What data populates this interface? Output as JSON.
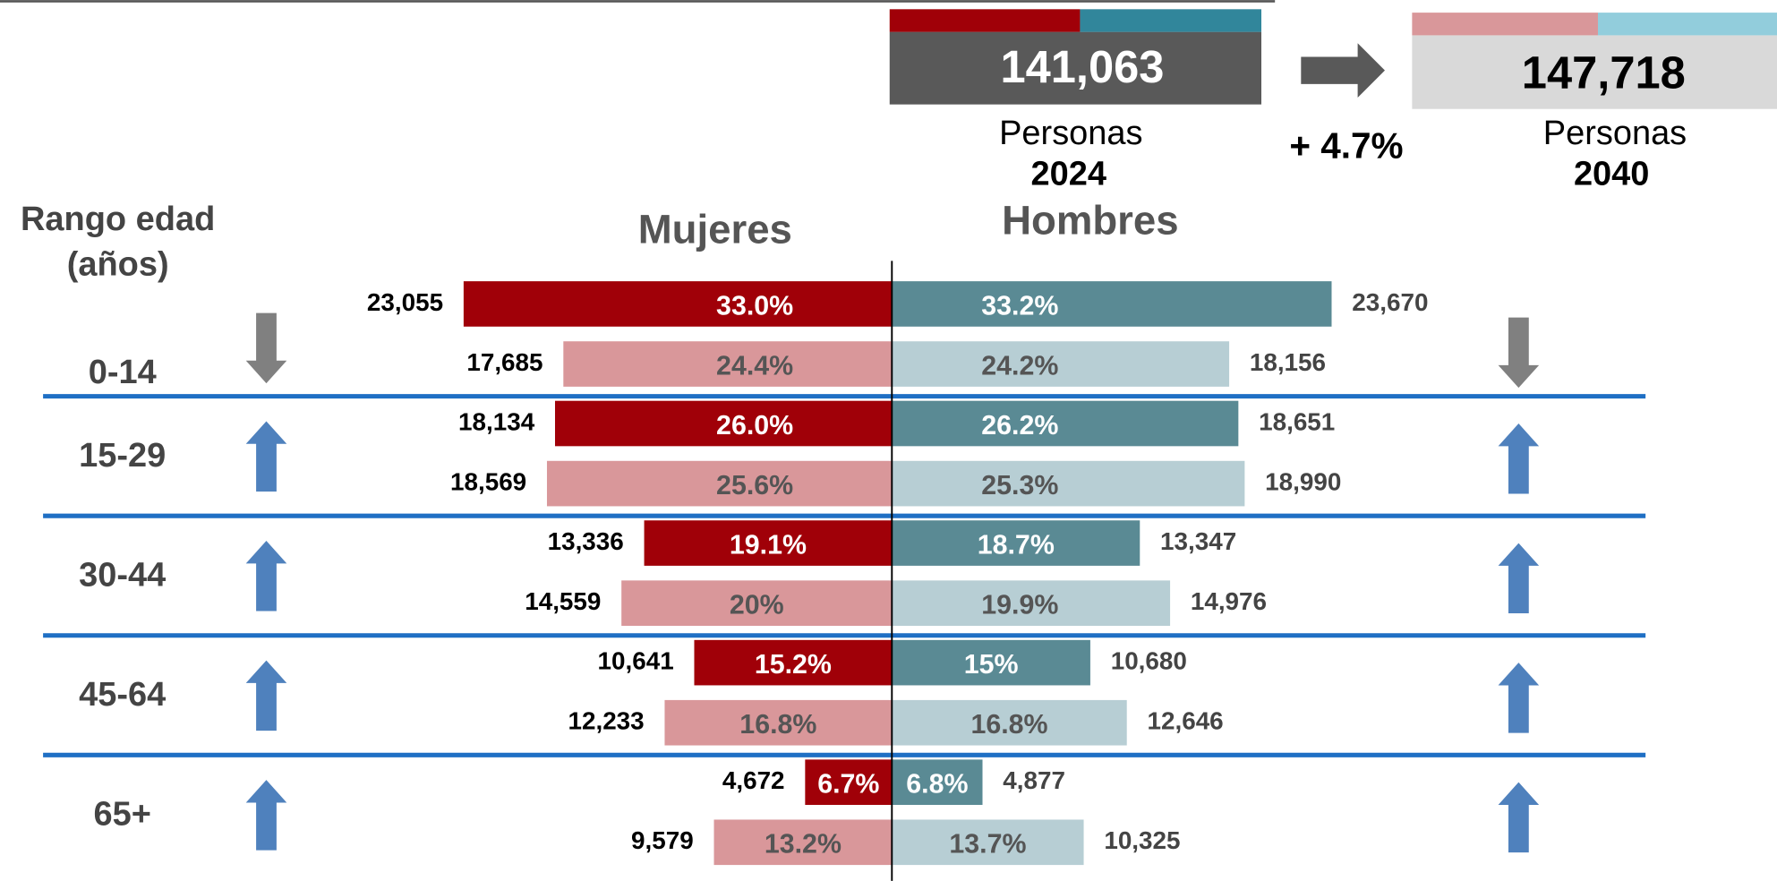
{
  "chart_data": {
    "type": "pyramid",
    "totals": [
      {
        "value": 141063,
        "label": "141,063",
        "unit": "Personas",
        "year": "2024"
      },
      {
        "value": 147718,
        "label": "147,718",
        "unit": "Personas",
        "year": "2040"
      }
    ],
    "change": 4.7,
    "change_label": "+ 4.7%",
    "category_title": [
      "Rango edad",
      "(años)"
    ],
    "sides": [
      "Mujeres",
      "Hombres"
    ],
    "categories": [
      "0-14",
      "15-29",
      "30-44",
      "45-64",
      "65+"
    ],
    "trend": [
      "down",
      "up",
      "up",
      "up",
      "up"
    ],
    "series": [
      {
        "color": "#a00008",
        "values": [
          23055,
          18134,
          13336,
          10641,
          4672
        ],
        "value_labels": [
          "23,055",
          "18,134",
          "13,336",
          "10,641",
          "4,672"
        ],
        "shares": [
          33.0,
          26.0,
          19.1,
          15.2,
          6.7
        ],
        "share_labels": [
          "33.0%",
          "26.0%",
          "19.1%",
          "15.2%",
          "6.7%"
        ]
      },
      {
        "color": "#d9979a",
        "values": [
          17685,
          18569,
          14559,
          12233,
          9579
        ],
        "value_labels": [
          "17,685",
          "18,569",
          "14,559",
          "12,233",
          "9,579"
        ],
        "shares": [
          24.4,
          25.6,
          20,
          16.8,
          13.2
        ],
        "share_labels": [
          "24.4%",
          "25.6%",
          "20%",
          "16.8%",
          "13.2%"
        ]
      },
      {
        "color": "#5a8a94",
        "values": [
          23670,
          18651,
          13347,
          10680,
          4877
        ],
        "value_labels": [
          "23,670",
          "18,651",
          "13,347",
          "10,680",
          "4,877"
        ],
        "shares": [
          33.2,
          26.2,
          18.7,
          15,
          6.8
        ],
        "share_labels": [
          "33.2%",
          "26.2%",
          "18.7%",
          "15%",
          "6.8%"
        ]
      },
      {
        "color": "#b7ced4",
        "values": [
          18156,
          18990,
          14976,
          12646,
          10325
        ],
        "value_labels": [
          "18,156",
          "18,990",
          "14,976",
          "12,646",
          "10,325"
        ],
        "shares": [
          24.2,
          25.3,
          19.9,
          16.8,
          13.7
        ],
        "share_labels": [
          "24.2%",
          "25.3%",
          "19.9%",
          "16.8%",
          "13.7%"
        ]
      }
    ]
  }
}
